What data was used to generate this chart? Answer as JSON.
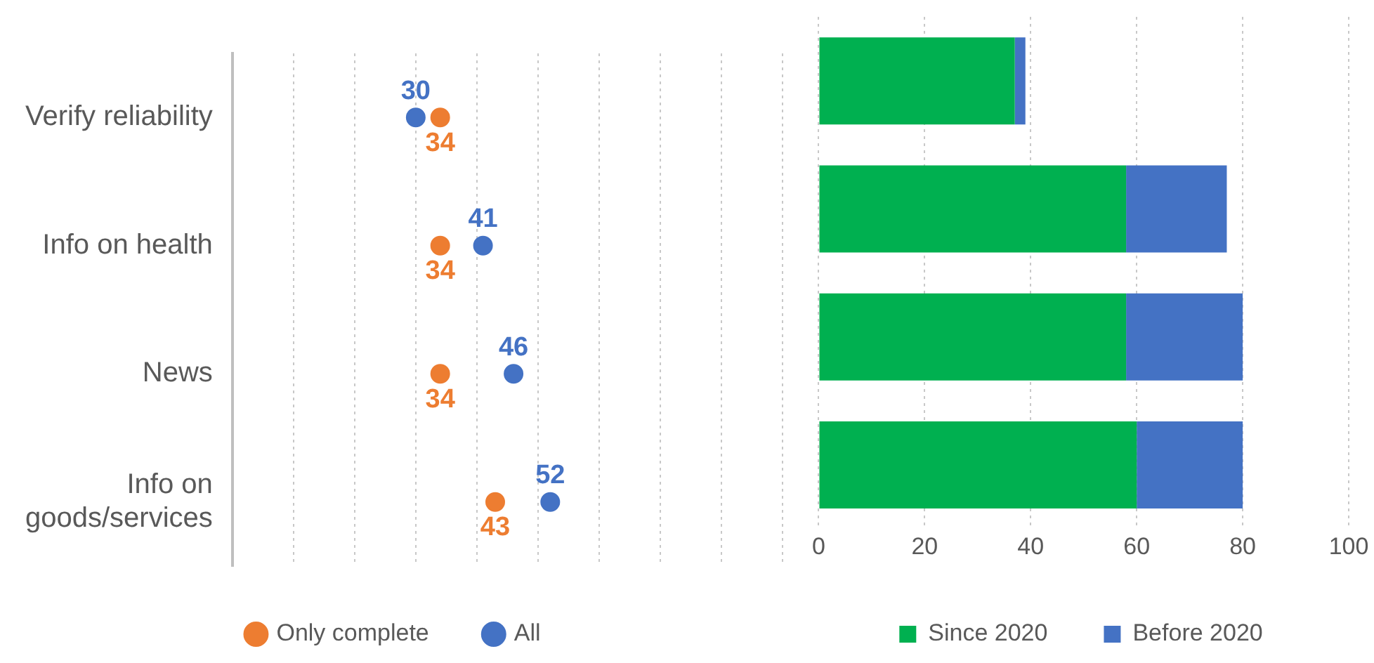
{
  "chart_data": [
    {
      "type": "scatter",
      "orientation": "horizontal",
      "categories": [
        "Verify reliability",
        "Info on health",
        "News",
        "Info on goods/services"
      ],
      "series": [
        {
          "name": "Only complete",
          "color": "#ed7d31",
          "values": [
            34,
            34,
            34,
            43
          ]
        },
        {
          "name": "All",
          "color": "#4472c4",
          "values": [
            30,
            41,
            46,
            52
          ]
        }
      ],
      "xlim": [
        0,
        90
      ],
      "xticks": [
        {
          "value": 0,
          "label": null
        },
        {
          "value": 10,
          "label": null
        },
        {
          "value": 20,
          "label": null
        },
        {
          "value": 30,
          "label": null
        },
        {
          "value": 40,
          "label": null
        },
        {
          "value": 50,
          "label": null
        },
        {
          "value": 60,
          "label": null
        },
        {
          "value": 70,
          "label": null
        },
        {
          "value": 80,
          "label": null
        },
        {
          "value": 90,
          "label": null
        }
      ],
      "data_labels": true,
      "tick_labels": "y",
      "grid": "x",
      "legend": "bottom",
      "marker": "circle"
    },
    {
      "type": "bar",
      "orientation": "horizontal",
      "stacked": true,
      "categories": [
        null,
        null,
        null,
        null
      ],
      "series": [
        {
          "name": "Since 2020",
          "color": "#00b050",
          "values": [
            37,
            58,
            58,
            60
          ]
        },
        {
          "name": "Before 2020",
          "color": "#4472c4",
          "values": [
            2,
            19,
            22,
            20
          ]
        }
      ],
      "xlim": [
        0,
        100
      ],
      "xticks": [
        0,
        20,
        40,
        60,
        80,
        100
      ],
      "tick_labels": "x",
      "grid": "x",
      "legend": "bottom"
    }
  ]
}
